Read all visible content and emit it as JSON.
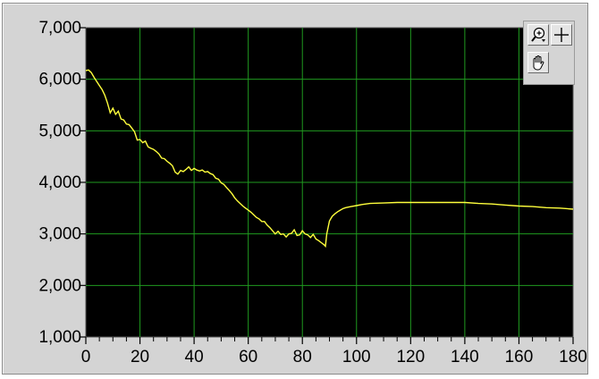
{
  "chart_data": {
    "type": "line",
    "title": "",
    "xlabel": "",
    "ylabel": "",
    "xlim": [
      0,
      180
    ],
    "ylim": [
      1000,
      7000
    ],
    "x_ticks": [
      0,
      20,
      40,
      60,
      80,
      100,
      120,
      140,
      160,
      180
    ],
    "y_ticks": [
      1000,
      2000,
      3000,
      4000,
      5000,
      6000,
      7000
    ],
    "x_tick_labels": [
      "0",
      "20",
      "40",
      "60",
      "80",
      "100",
      "120",
      "140",
      "160",
      "180"
    ],
    "y_tick_labels": [
      "1,000",
      "2,000",
      "3,000",
      "4,000",
      "5,000",
      "6,000",
      "7,000"
    ],
    "grid": true,
    "colors": {
      "plot_background": "#000000",
      "grid": "#1f9a1f",
      "series": "#ffff3c"
    },
    "series": [
      {
        "name": "",
        "x": [
          0,
          1,
          2,
          3,
          4,
          5,
          6,
          7,
          8,
          9,
          10,
          11,
          12,
          13,
          14,
          15,
          16,
          17,
          18,
          19,
          20,
          21,
          22,
          23,
          24,
          25,
          26,
          27,
          28,
          29,
          30,
          31,
          32,
          33,
          34,
          35,
          36,
          37,
          38,
          39,
          40,
          41,
          42,
          43,
          44,
          45,
          46,
          47,
          48,
          49,
          50,
          51,
          52,
          53,
          54,
          55,
          56,
          57,
          58,
          59,
          60,
          61,
          62,
          63,
          64,
          65,
          66,
          67,
          68,
          69,
          70,
          71,
          72,
          73,
          74,
          75,
          76,
          77,
          78,
          79,
          80,
          81,
          82,
          83,
          84,
          85,
          86,
          87,
          88,
          88.5,
          89,
          90,
          91,
          92,
          93,
          94,
          95,
          96,
          98,
          100,
          102,
          105,
          110,
          115,
          120,
          125,
          130,
          135,
          140,
          145,
          150,
          155,
          160,
          165,
          170,
          175,
          180
        ],
        "y": [
          6170,
          6180,
          6130,
          6040,
          5960,
          5880,
          5800,
          5690,
          5540,
          5350,
          5440,
          5320,
          5380,
          5230,
          5210,
          5130,
          5120,
          5050,
          4980,
          4820,
          4830,
          4770,
          4800,
          4690,
          4660,
          4640,
          4600,
          4550,
          4470,
          4460,
          4410,
          4370,
          4320,
          4200,
          4160,
          4230,
          4210,
          4250,
          4300,
          4230,
          4270,
          4240,
          4220,
          4240,
          4200,
          4210,
          4170,
          4150,
          4080,
          4060,
          3990,
          3960,
          3900,
          3840,
          3780,
          3700,
          3640,
          3590,
          3540,
          3500,
          3460,
          3420,
          3370,
          3320,
          3290,
          3240,
          3240,
          3170,
          3120,
          3060,
          3000,
          3050,
          2990,
          3000,
          2940,
          3000,
          3010,
          3080,
          2970,
          2980,
          3060,
          3000,
          2980,
          2930,
          2990,
          2900,
          2870,
          2830,
          2790,
          2760,
          3000,
          3250,
          3340,
          3390,
          3430,
          3460,
          3490,
          3510,
          3530,
          3550,
          3570,
          3590,
          3600,
          3610,
          3610,
          3610,
          3610,
          3610,
          3610,
          3590,
          3580,
          3560,
          3540,
          3530,
          3510,
          3500,
          3480
        ]
      }
    ]
  }
}
